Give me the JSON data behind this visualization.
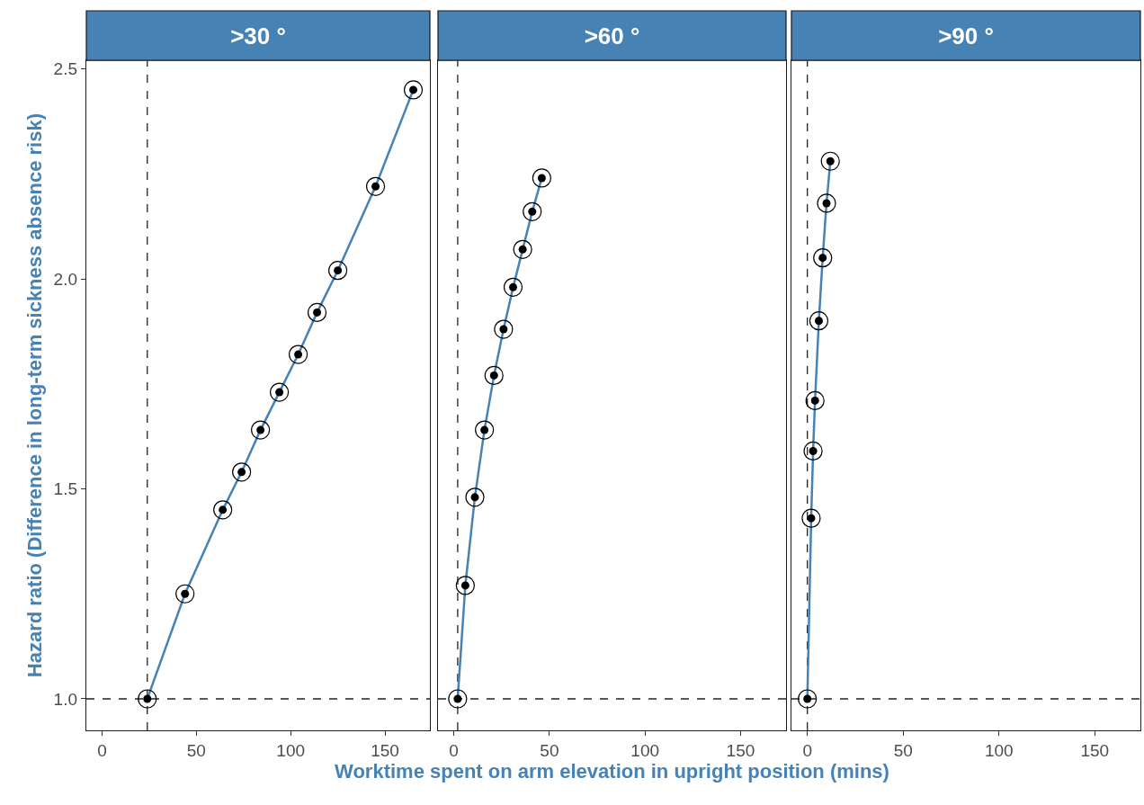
{
  "chart_data": [
    {
      "type": "line",
      "title": ">30 °",
      "ylabel": "Hazard ratio (Difference in long-term sickness absence risk)",
      "marker": "circle",
      "xlim": [
        -8.3,
        173.8
      ],
      "xticks": [
        0,
        50,
        100,
        150
      ],
      "ylim": [
        0.925,
        2.52
      ],
      "yticks": [
        {
          "value": 1,
          "label": "1.0"
        },
        {
          "value": 1.5,
          "label": "1.5"
        },
        {
          "value": 2,
          "label": "2.0"
        },
        {
          "value": 2.5,
          "label": "2.5"
        }
      ],
      "series": [
        {
          "color": "#4682b4",
          "x": [
            24,
            44,
            64,
            74,
            84,
            94,
            104,
            114,
            125,
            145,
            165
          ],
          "values": [
            1.0,
            1.25,
            1.45,
            1.54,
            1.64,
            1.73,
            1.82,
            1.92,
            2.02,
            2.22,
            2.45
          ]
        }
      ],
      "ref_lines": [
        {
          "axis": "y",
          "value": 1,
          "line_style": "dashed"
        },
        {
          "axis": "x",
          "value": 24,
          "line_style": "dashed"
        }
      ]
    },
    {
      "type": "line",
      "title": ">60 °",
      "xlabel": "Worktime spent on arm elevation in upright position (mins)",
      "marker": "circle",
      "tick_labels": "x",
      "xlim": [
        -8.3,
        173.8
      ],
      "xticks": [
        0,
        50,
        100,
        150
      ],
      "ylim": [
        0.925,
        2.52
      ],
      "series": [
        {
          "color": "#4682b4",
          "x": [
            2,
            6,
            11,
            16,
            21,
            26,
            31,
            36,
            41,
            46
          ],
          "values": [
            1.0,
            1.27,
            1.48,
            1.64,
            1.77,
            1.88,
            1.98,
            2.07,
            2.16,
            2.24
          ]
        }
      ],
      "ref_lines": [
        {
          "axis": "y",
          "value": 1,
          "line_style": "dashed"
        },
        {
          "axis": "x",
          "value": 2,
          "line_style": "dashed"
        }
      ]
    },
    {
      "type": "line",
      "title": ">90 °",
      "marker": "circle",
      "tick_labels": "x",
      "xlim": [
        -8.3,
        173.8
      ],
      "xticks": [
        0,
        50,
        100,
        150
      ],
      "ylim": [
        0.925,
        2.52
      ],
      "series": [
        {
          "color": "#4682b4",
          "x": [
            0,
            2,
            3,
            4,
            6,
            8,
            10,
            12
          ],
          "values": [
            1.0,
            1.43,
            1.59,
            1.71,
            1.9,
            2.05,
            2.18,
            2.28
          ]
        }
      ],
      "ref_lines": [
        {
          "axis": "y",
          "value": 1,
          "line_style": "dashed"
        },
        {
          "axis": "x",
          "value": 0,
          "line_style": "dashed"
        }
      ]
    }
  ]
}
